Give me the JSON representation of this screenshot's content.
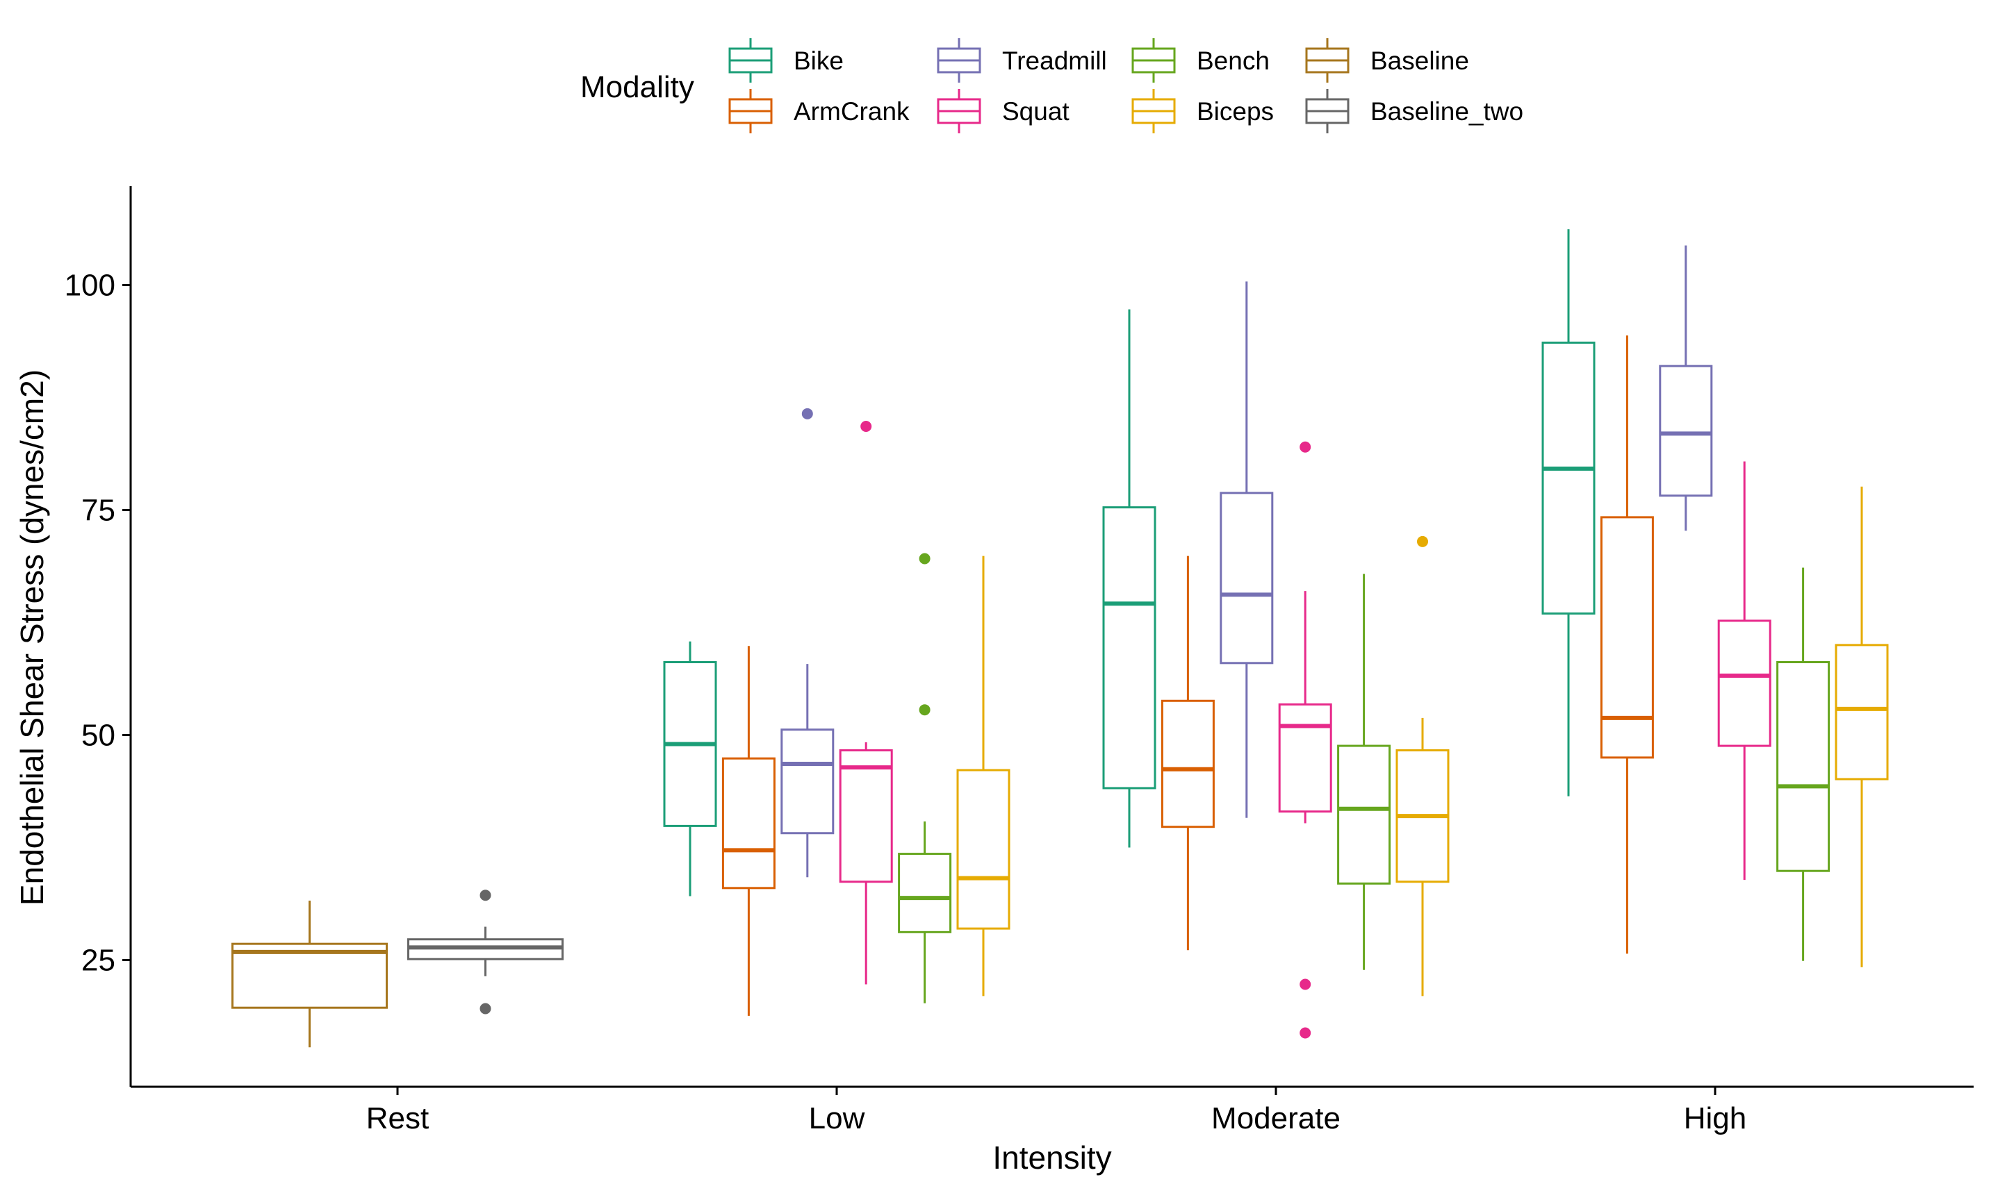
{
  "chart_data": {
    "type": "boxplot",
    "xlabel": "Intensity",
    "ylabel": "Endothelial Shear Stress (dynes/cm2)",
    "categories": [
      "Rest",
      "Low",
      "Moderate",
      "High"
    ],
    "yticks": [
      25,
      50,
      75,
      100
    ],
    "ylim": [
      10,
      110
    ],
    "legend": {
      "title": "Modality",
      "position": "top",
      "entries": [
        {
          "name": "Bike",
          "color": "#1b9e77"
        },
        {
          "name": "ArmCrank",
          "color": "#d95f02"
        },
        {
          "name": "Treadmill",
          "color": "#7570b3"
        },
        {
          "name": "Squat",
          "color": "#e7298a"
        },
        {
          "name": "Bench",
          "color": "#66a61e"
        },
        {
          "name": "Biceps",
          "color": "#e6ab02"
        },
        {
          "name": "Baseline",
          "color": "#a6761d"
        },
        {
          "name": "Baseline_two",
          "color": "#666666"
        }
      ]
    },
    "boxes": [
      {
        "category": "Rest",
        "modality": "Baseline",
        "whisker_low": 15.3,
        "q1": 19.7,
        "median": 25.9,
        "q3": 26.8,
        "whisker_high": 31.6,
        "outliers": []
      },
      {
        "category": "Rest",
        "modality": "Baseline_two",
        "whisker_low": 23.2,
        "q1": 25.1,
        "median": 26.4,
        "q3": 27.3,
        "whisker_high": 28.7,
        "outliers": [
          32.2,
          19.6
        ]
      },
      {
        "category": "Low",
        "modality": "Bike",
        "whisker_low": 32.1,
        "q1": 39.9,
        "median": 49.0,
        "q3": 58.1,
        "whisker_high": 60.4,
        "outliers": []
      },
      {
        "category": "Low",
        "modality": "ArmCrank",
        "whisker_low": 18.8,
        "q1": 33.0,
        "median": 37.2,
        "q3": 47.4,
        "whisker_high": 59.9,
        "outliers": []
      },
      {
        "category": "Low",
        "modality": "Treadmill",
        "whisker_low": 34.2,
        "q1": 39.1,
        "median": 46.8,
        "q3": 50.6,
        "whisker_high": 57.9,
        "outliers": [
          85.7
        ]
      },
      {
        "category": "Low",
        "modality": "Squat",
        "whisker_low": 22.3,
        "q1": 33.7,
        "median": 46.4,
        "q3": 48.3,
        "whisker_high": 49.2,
        "outliers": [
          84.3
        ]
      },
      {
        "category": "Low",
        "modality": "Bench",
        "whisker_low": 20.2,
        "q1": 28.1,
        "median": 31.9,
        "q3": 36.8,
        "whisker_high": 40.4,
        "outliers": [
          69.6,
          52.8
        ]
      },
      {
        "category": "Low",
        "modality": "Biceps",
        "whisker_low": 21.0,
        "q1": 28.5,
        "median": 34.1,
        "q3": 46.1,
        "whisker_high": 69.9,
        "outliers": []
      },
      {
        "category": "Moderate",
        "modality": "Bike",
        "whisker_low": 37.5,
        "q1": 44.1,
        "median": 64.6,
        "q3": 75.3,
        "whisker_high": 97.3,
        "outliers": []
      },
      {
        "category": "Moderate",
        "modality": "ArmCrank",
        "whisker_low": 26.1,
        "q1": 39.8,
        "median": 46.2,
        "q3": 53.8,
        "whisker_high": 69.9,
        "outliers": []
      },
      {
        "category": "Moderate",
        "modality": "Treadmill",
        "whisker_low": 40.8,
        "q1": 58.0,
        "median": 65.6,
        "q3": 76.9,
        "whisker_high": 100.4,
        "outliers": []
      },
      {
        "category": "Moderate",
        "modality": "Squat",
        "whisker_low": 40.2,
        "q1": 41.5,
        "median": 51.0,
        "q3": 53.4,
        "whisker_high": 66.0,
        "outliers": [
          82.0,
          22.3,
          16.9
        ]
      },
      {
        "category": "Moderate",
        "modality": "Bench",
        "whisker_low": 23.9,
        "q1": 33.5,
        "median": 41.8,
        "q3": 48.8,
        "whisker_high": 67.9,
        "outliers": []
      },
      {
        "category": "Moderate",
        "modality": "Biceps",
        "whisker_low": 21.0,
        "q1": 33.7,
        "median": 41.0,
        "q3": 48.3,
        "whisker_high": 51.9,
        "outliers": [
          71.5
        ]
      },
      {
        "category": "High",
        "modality": "Bike",
        "whisker_low": 43.2,
        "q1": 63.5,
        "median": 79.6,
        "q3": 93.6,
        "whisker_high": 106.2,
        "outliers": []
      },
      {
        "category": "High",
        "modality": "ArmCrank",
        "whisker_low": 25.7,
        "q1": 47.5,
        "median": 51.9,
        "q3": 74.2,
        "whisker_high": 94.4,
        "outliers": []
      },
      {
        "category": "High",
        "modality": "Treadmill",
        "whisker_low": 72.7,
        "q1": 76.6,
        "median": 83.5,
        "q3": 91.0,
        "whisker_high": 104.4,
        "outliers": []
      },
      {
        "category": "High",
        "modality": "Squat",
        "whisker_low": 33.9,
        "q1": 48.8,
        "median": 56.6,
        "q3": 62.7,
        "whisker_high": 80.4,
        "outliers": []
      },
      {
        "category": "High",
        "modality": "Bench",
        "whisker_low": 24.9,
        "q1": 34.9,
        "median": 44.3,
        "q3": 58.1,
        "whisker_high": 68.6,
        "outliers": []
      },
      {
        "category": "High",
        "modality": "Biceps",
        "whisker_low": 24.2,
        "q1": 45.1,
        "median": 52.9,
        "q3": 60.0,
        "whisker_high": 77.6,
        "outliers": []
      }
    ]
  }
}
